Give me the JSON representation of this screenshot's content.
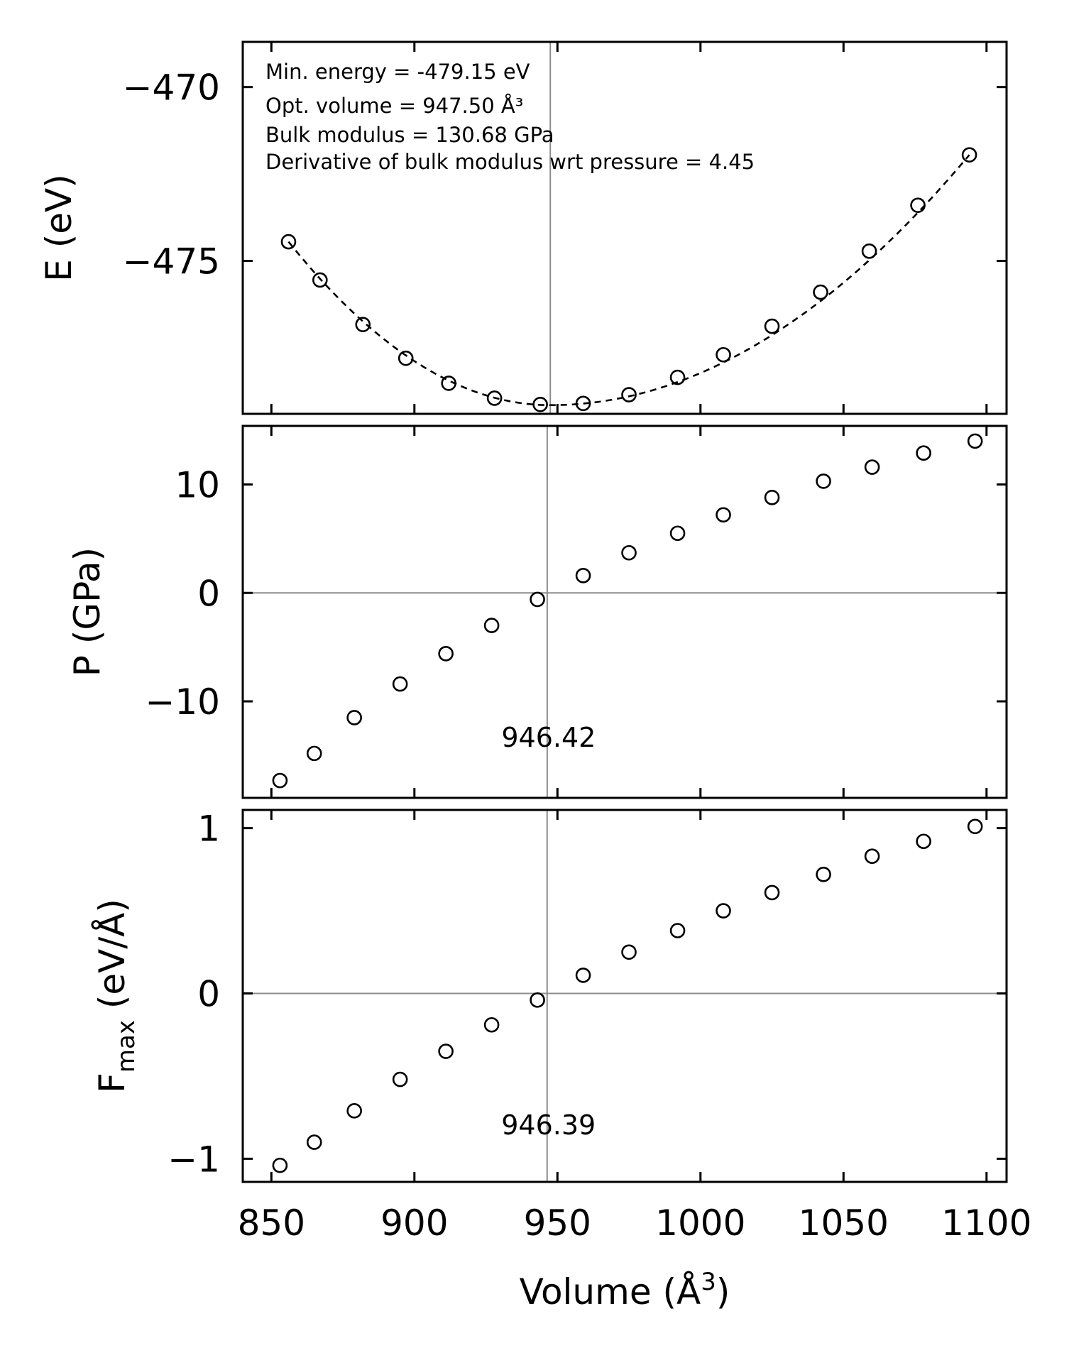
{
  "chart_data": [
    {
      "type": "scatter",
      "panel": "energy",
      "ylabel": "E (eV)",
      "ylim": [
        -479.4,
        -468.7
      ],
      "yticks": [
        -470,
        -475
      ],
      "ytick_labels": [
        "−470",
        "−475"
      ],
      "x": [
        856,
        867,
        882,
        897,
        912,
        928,
        944,
        959,
        975,
        992,
        1008,
        1025,
        1042,
        1059,
        1076,
        1094
      ],
      "y": [
        -474.45,
        -475.55,
        -476.83,
        -477.8,
        -478.52,
        -478.95,
        -479.13,
        -479.1,
        -478.85,
        -478.35,
        -477.7,
        -476.88,
        -475.9,
        -474.72,
        -473.4,
        -471.95
      ],
      "fit": {
        "style": "dashed",
        "vertex_volume": 947.5,
        "vertex_energy": -479.15,
        "x_range": [
          856,
          1094
        ]
      },
      "vline_x": 947.5,
      "annotations": [
        {
          "name": "min-energy",
          "text": "Min. energy = -479.15 eV"
        },
        {
          "name": "opt-volume",
          "text": "Opt. volume = 947.50 Å³"
        },
        {
          "name": "bulk-modulus",
          "text": "Bulk modulus = 130.68 GPa"
        },
        {
          "name": "bulk-derivative",
          "text": "Derivative of bulk modulus wrt pressure = 4.45"
        }
      ]
    },
    {
      "type": "scatter",
      "panel": "pressure",
      "ylabel": "P (GPa)",
      "ylim": [
        -18.9,
        15.4
      ],
      "yticks": [
        10,
        0,
        -10
      ],
      "ytick_labels": [
        "10",
        "0",
        "−10"
      ],
      "x": [
        853,
        865,
        879,
        895,
        911,
        927,
        943,
        959,
        975,
        992,
        1008,
        1025,
        1043,
        1060,
        1078,
        1096
      ],
      "y": [
        -17.3,
        -14.8,
        -11.5,
        -8.4,
        -5.6,
        -3.0,
        -0.6,
        1.6,
        3.7,
        5.5,
        7.2,
        8.8,
        10.3,
        11.6,
        12.9,
        14.0
      ],
      "hline_y": 0,
      "vline_x": 946.42,
      "vline_label": "946.42"
    },
    {
      "type": "scatter",
      "panel": "force",
      "ylabel": "F",
      "ylabel_sub": "max",
      "ylabel_unit": " (eV/Å)",
      "ylim": [
        -1.14,
        1.11
      ],
      "yticks": [
        1,
        0,
        -1
      ],
      "ytick_labels": [
        "1",
        "0",
        "−1"
      ],
      "x": [
        853,
        865,
        879,
        895,
        911,
        927,
        943,
        959,
        975,
        992,
        1008,
        1025,
        1043,
        1060,
        1078,
        1096
      ],
      "y": [
        -1.04,
        -0.9,
        -0.71,
        -0.52,
        -0.35,
        -0.19,
        -0.04,
        0.11,
        0.25,
        0.38,
        0.5,
        0.61,
        0.72,
        0.83,
        0.92,
        1.01
      ],
      "hline_y": 0,
      "vline_x": 946.39,
      "vline_label": "946.39"
    }
  ],
  "x_axis": {
    "xlabel": "Volume (Å",
    "xlabel_sup": "3",
    "xlabel_close": ")",
    "xlim": [
      840,
      1107
    ],
    "xticks": [
      850,
      900,
      950,
      1000,
      1050,
      1100
    ],
    "xtick_labels": [
      "850",
      "900",
      "950",
      "1000",
      "1050",
      "1100"
    ]
  }
}
